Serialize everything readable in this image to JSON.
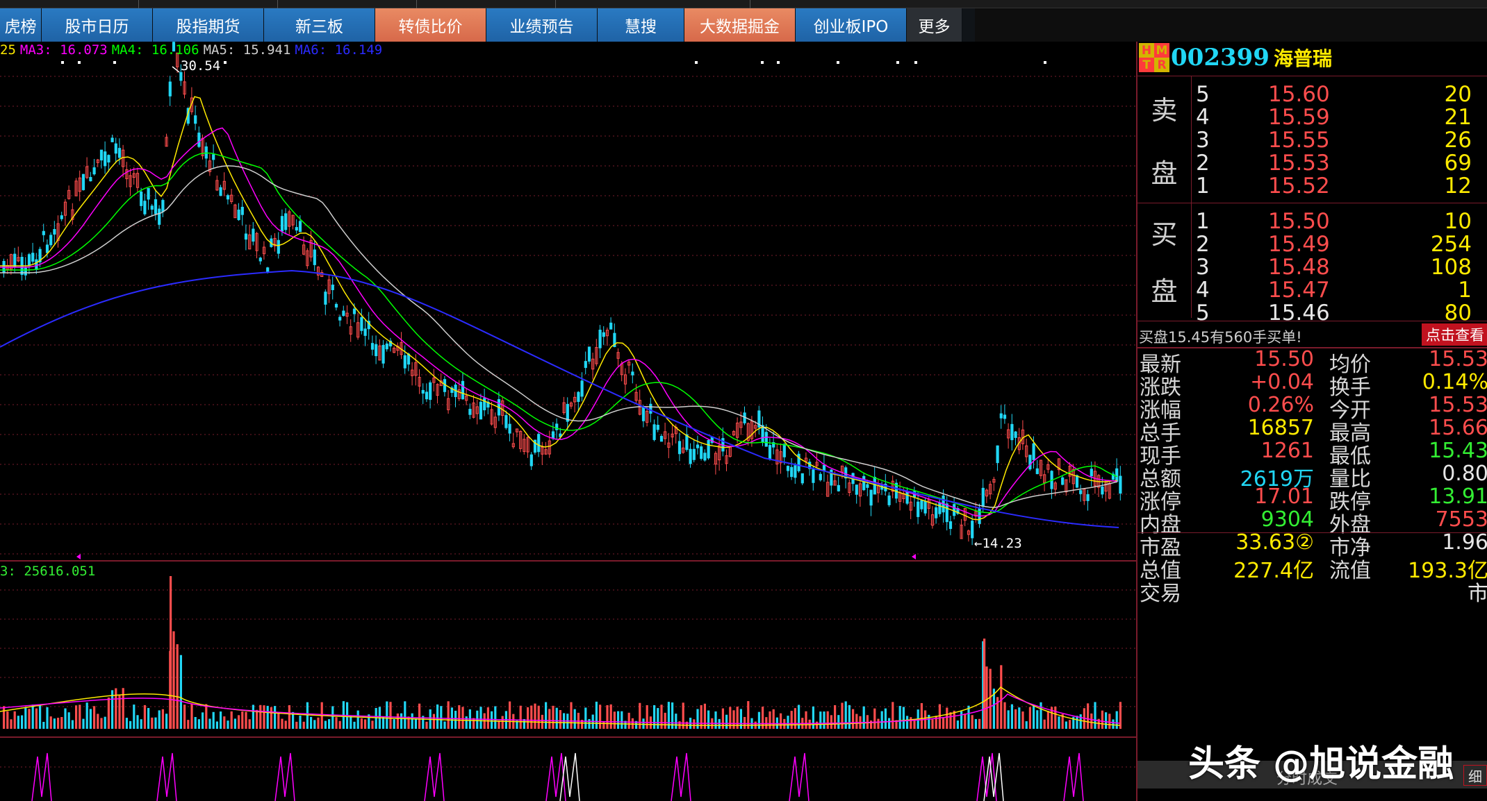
{
  "nav": {
    "tabs": [
      {
        "label": "虎榜",
        "w": 60,
        "style": "blue"
      },
      {
        "label": "股市日历",
        "w": 160,
        "style": "blue"
      },
      {
        "label": "股指期货",
        "w": 160,
        "style": "blue"
      },
      {
        "label": "新三板",
        "w": 160,
        "style": "blue"
      },
      {
        "label": "转债比价",
        "w": 160,
        "style": "orange"
      },
      {
        "label": "业绩预告",
        "w": 160,
        "style": "blue"
      },
      {
        "label": "慧搜",
        "w": 125,
        "style": "blue"
      },
      {
        "label": "大数据掘金",
        "w": 160,
        "style": "orange"
      },
      {
        "label": "创业板IPO",
        "w": 160,
        "style": "blue"
      },
      {
        "label": "更多",
        "w": 80,
        "style": "dark"
      }
    ]
  },
  "ma_legend": [
    {
      "text": "25",
      "color": "#ffea00"
    },
    {
      "text": "MA3: 16.073",
      "color": "#ff00ff"
    },
    {
      "text": "MA4: 16.106",
      "color": "#00ff00"
    },
    {
      "text": "MA5: 15.941",
      "color": "#cfcfcf"
    },
    {
      "text": "MA6: 16.149",
      "color": "#2b2bff"
    }
  ],
  "chart": {
    "high_label": "30.54",
    "low_label": "←14.23",
    "vol_label": "3: 25616.051"
  },
  "stock": {
    "badge": [
      "H",
      "M",
      "T",
      "R"
    ],
    "code": "002399",
    "name": "海普瑞"
  },
  "orderbook": {
    "sell_label": [
      "卖",
      "盘"
    ],
    "buy_label": [
      "买",
      "盘"
    ],
    "sell": [
      {
        "lvl": "5",
        "price": "15.60",
        "vol": "20"
      },
      {
        "lvl": "4",
        "price": "15.59",
        "vol": "21"
      },
      {
        "lvl": "3",
        "price": "15.55",
        "vol": "26"
      },
      {
        "lvl": "2",
        "price": "15.53",
        "vol": "69"
      },
      {
        "lvl": "1",
        "price": "15.52",
        "vol": "12"
      }
    ],
    "buy": [
      {
        "lvl": "1",
        "price": "15.50",
        "vol": "10"
      },
      {
        "lvl": "2",
        "price": "15.49",
        "vol": "254"
      },
      {
        "lvl": "3",
        "price": "15.48",
        "vol": "108"
      },
      {
        "lvl": "4",
        "price": "15.47",
        "vol": "1"
      },
      {
        "lvl": "5",
        "price": "15.46",
        "vol": "80"
      }
    ],
    "notice_text": "买盘15.45有560手买单!",
    "notice_button": "点击查看"
  },
  "quotes": [
    {
      "k1": "最新",
      "v1": "15.50",
      "c1": "#ff4d4d",
      "k2": "均价",
      "v2": "15.53",
      "c2": "#ff4d4d"
    },
    {
      "k1": "涨跌",
      "v1": "+0.04",
      "c1": "#ff4d4d",
      "k2": "换手",
      "v2": "0.14%",
      "c2": "#ffea00"
    },
    {
      "k1": "涨幅",
      "v1": "0.26%",
      "c1": "#ff4d4d",
      "k2": "今开",
      "v2": "15.53",
      "c2": "#ff4d4d"
    },
    {
      "k1": "总手",
      "v1": "16857",
      "c1": "#ffea00",
      "k2": "最高",
      "v2": "15.66",
      "c2": "#ff4d4d"
    },
    {
      "k1": "现手",
      "v1": "1261",
      "c1": "#ff4d4d",
      "k2": "最低",
      "v2": "15.43",
      "c2": "#33ee33"
    },
    {
      "k1": "总额",
      "v1": "2619万",
      "c1": "#21d7f5",
      "k2": "量比",
      "v2": "0.80",
      "c2": "#e6e6e6"
    },
    {
      "k1": "涨停",
      "v1": "17.01",
      "c1": "#ff4d4d",
      "k2": "跌停",
      "v2": "13.91",
      "c2": "#33ee33"
    },
    {
      "k1": "内盘",
      "v1": "9304",
      "c1": "#33ee33",
      "k2": "外盘",
      "v2": "7553",
      "c2": "#ff4d4d"
    },
    {
      "k1": "市盈",
      "v1": "33.63②",
      "c1": "#ffea00",
      "k2": "市净",
      "v2": "1.96",
      "c2": "#e6e6e6"
    },
    {
      "k1": "总值",
      "v1": "227.4亿",
      "c1": "#ffea00",
      "k2": "流值",
      "v2": "193.3亿",
      "c2": "#ffea00"
    },
    {
      "k1": "交易",
      "v1": "",
      "c1": "#ffea00",
      "k2": "",
      "v2": "市",
      "c2": "#e6e6e6"
    }
  ],
  "bottom": {
    "title": "分时成交",
    "close": "细"
  },
  "watermark": "头条 @旭说金融",
  "colors": {
    "up": "#ff4d4d",
    "down": "#21d7f5",
    "grid": "#7a1b2b"
  }
}
